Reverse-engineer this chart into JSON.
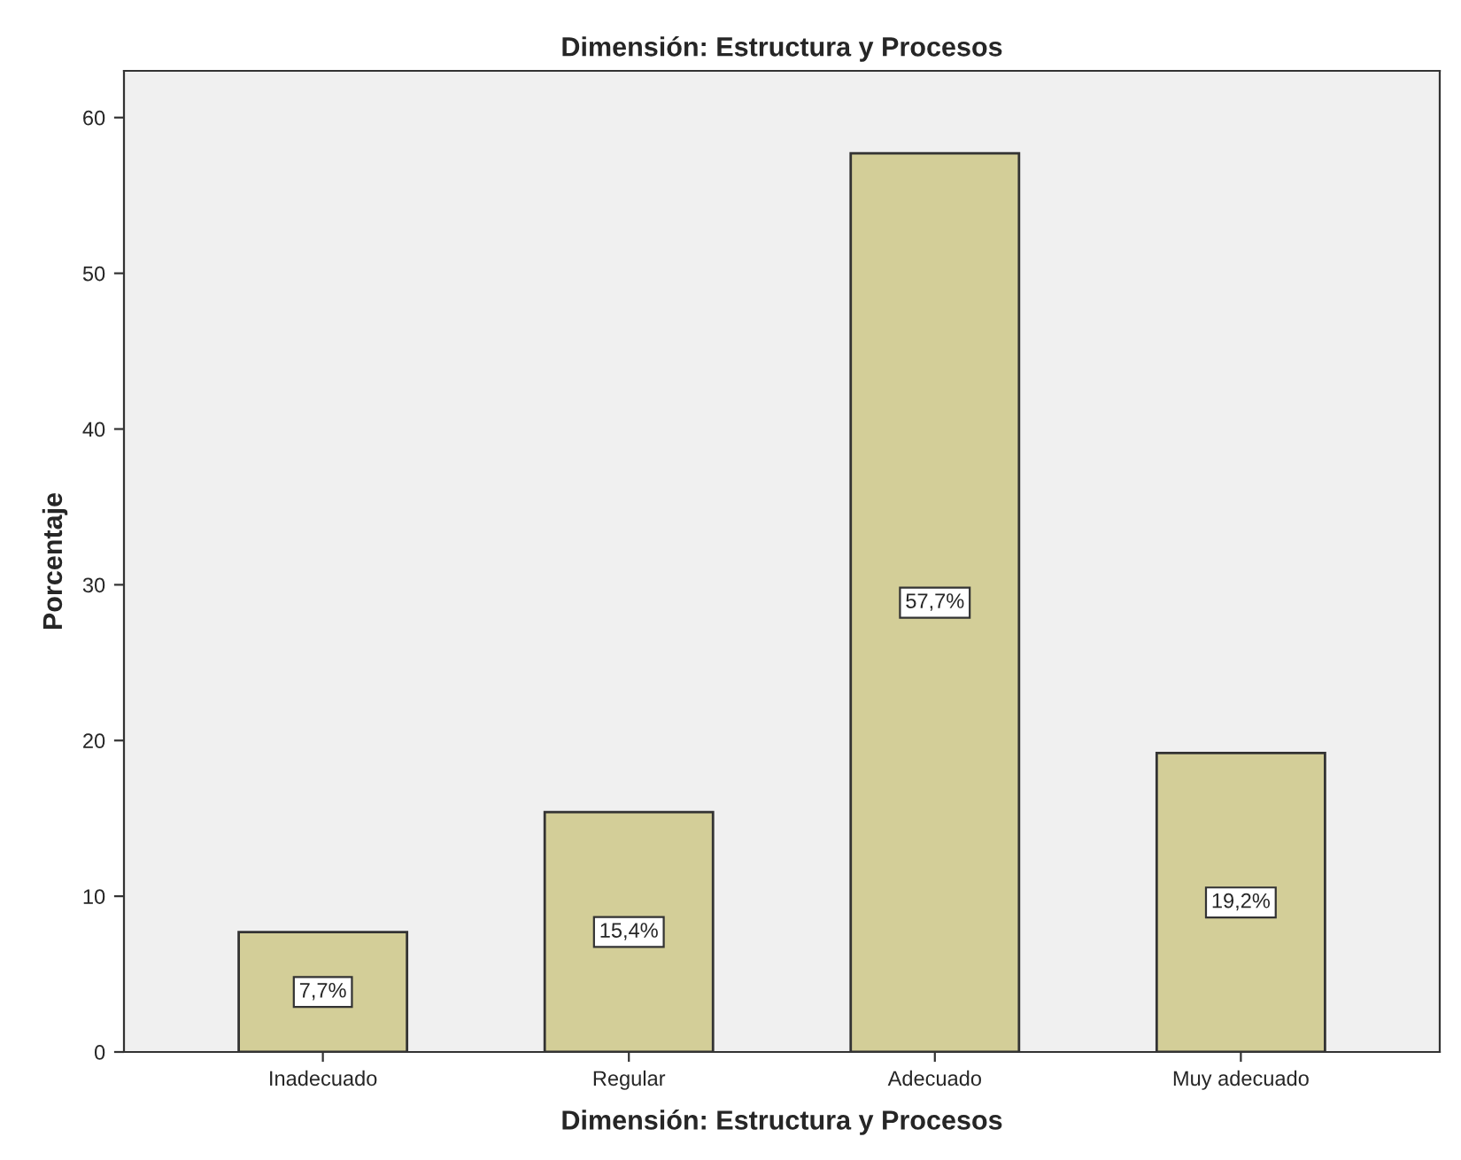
{
  "chart_data": {
    "type": "bar",
    "title": "Dimensión: Estructura y Procesos",
    "xlabel": "Dimensión: Estructura y Procesos",
    "ylabel": "Porcentaje",
    "categories": [
      "Inadecuado",
      "Regular",
      "Adecuado",
      "Muy adecuado"
    ],
    "values": [
      7.7,
      15.4,
      57.7,
      19.2
    ],
    "value_labels": [
      "7,7%",
      "15,4%",
      "57,7%",
      "19,2%"
    ],
    "color": "#d3ce98",
    "ylim": [
      0,
      63
    ],
    "yticks": [
      0,
      10,
      20,
      30,
      40,
      50,
      60
    ],
    "grid": false
  }
}
